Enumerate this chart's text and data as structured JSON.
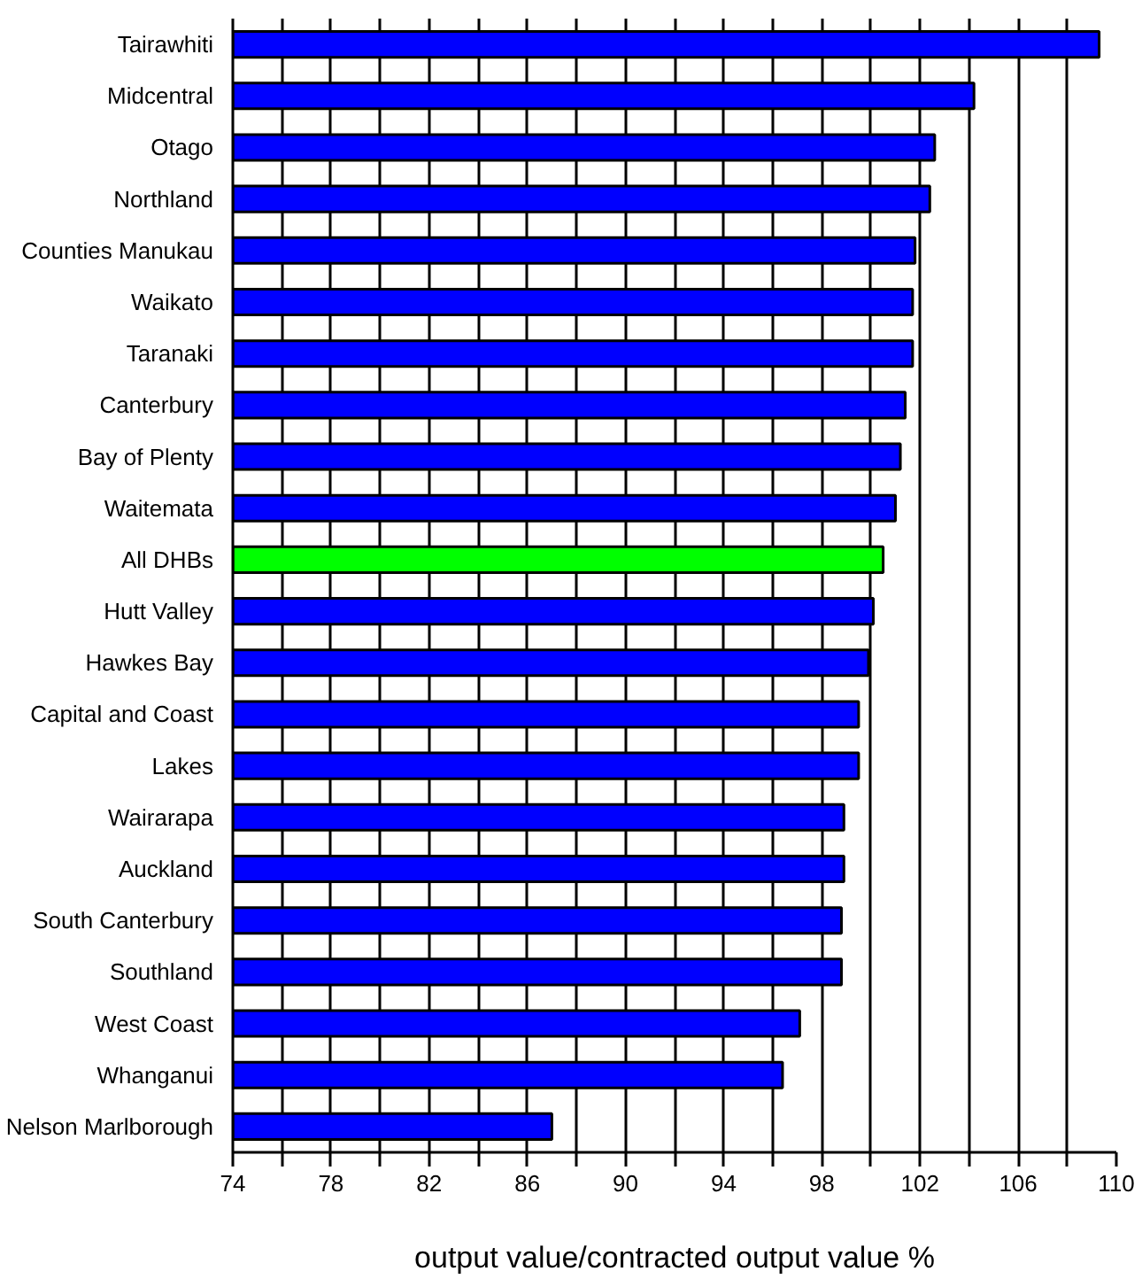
{
  "chart_data": {
    "type": "bar",
    "orientation": "horizontal",
    "xlabel": "output value/contracted output value %",
    "categories": [
      "Tairawhiti",
      "Midcentral",
      "Otago",
      "Northland",
      "Counties Manukau",
      "Waikato",
      "Taranaki",
      "Canterbury",
      "Bay of Plenty",
      "Waitemata",
      "All DHBs",
      "Hutt Valley",
      "Hawkes Bay",
      "Capital and Coast",
      "Lakes",
      "Wairarapa",
      "Auckland",
      "South Canterbury",
      "Southland",
      "West Coast",
      "Whanganui",
      "Nelson Marlborough"
    ],
    "values": [
      109.3,
      104.2,
      102.6,
      102.4,
      101.8,
      101.7,
      101.7,
      101.4,
      101.2,
      101.0,
      100.5,
      100.1,
      99.9,
      99.5,
      99.5,
      98.9,
      98.9,
      98.8,
      98.8,
      97.1,
      96.4,
      87.0
    ],
    "colors": [
      "#0000ff",
      "#0000ff",
      "#0000ff",
      "#0000ff",
      "#0000ff",
      "#0000ff",
      "#0000ff",
      "#0000ff",
      "#0000ff",
      "#0000ff",
      "#00ff00",
      "#0000ff",
      "#0000ff",
      "#0000ff",
      "#0000ff",
      "#0000ff",
      "#0000ff",
      "#0000ff",
      "#0000ff",
      "#0000ff",
      "#0000ff",
      "#0000ff"
    ],
    "xlim": [
      74,
      110
    ],
    "xticks": [
      74,
      {
        "value": 76,
        "label": null
      },
      78,
      {
        "value": 80,
        "label": null
      },
      82,
      {
        "value": 84,
        "label": null
      },
      86,
      {
        "value": 88,
        "label": null
      },
      90,
      {
        "value": 92,
        "label": null
      },
      94,
      {
        "value": 96,
        "label": null
      },
      98,
      {
        "value": 100,
        "label": null
      },
      102,
      {
        "value": 104,
        "label": null
      },
      106,
      {
        "value": 108,
        "label": null
      },
      110
    ],
    "grid": "x"
  }
}
